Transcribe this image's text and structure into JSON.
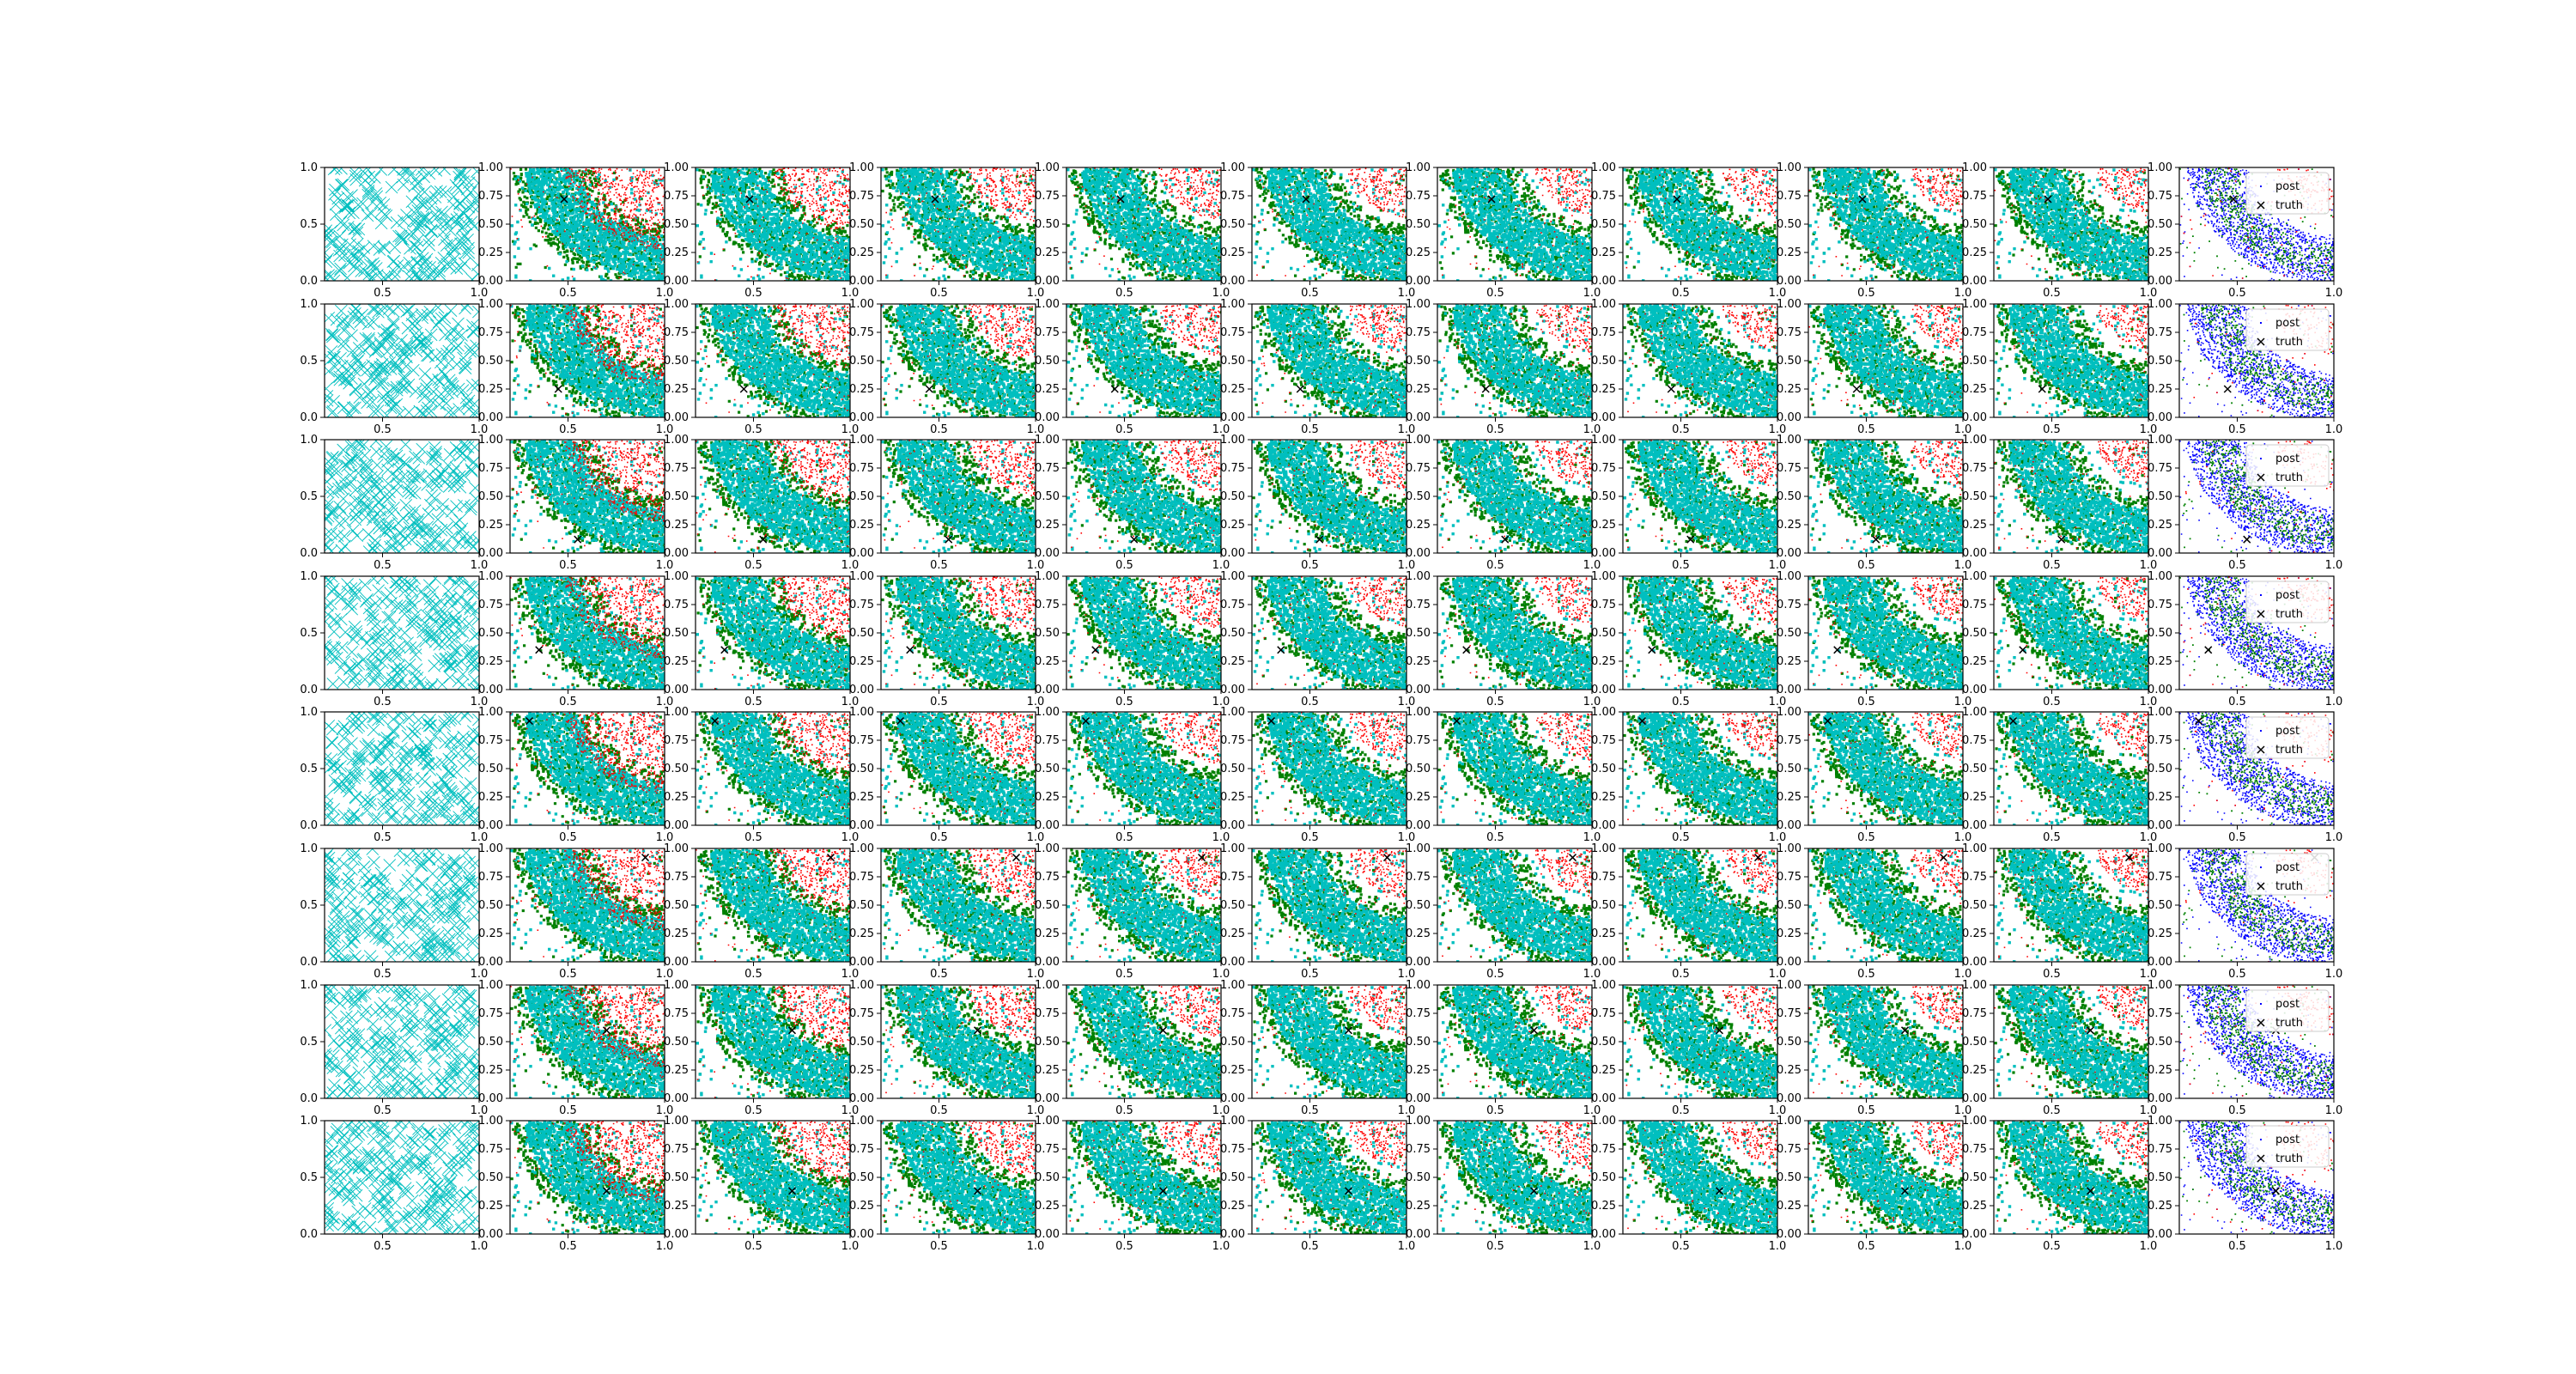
{
  "figure": {
    "colors": {
      "prior": "#00bfbf",
      "green": "#008000",
      "red": "#ff0000",
      "blue": "#0000ff",
      "truth": "#000000",
      "axis": "#000000"
    }
  },
  "chart_data": {
    "type": "scatter",
    "rows": 8,
    "cols": 11,
    "xlim": [
      0.2,
      1.0
    ],
    "ylim": [
      0.0,
      1.0
    ],
    "first_col_yticks": [
      "0.0",
      "0.5",
      "1.0"
    ],
    "other_col_yticks": [
      "0.00",
      "0.25",
      "0.50",
      "0.75",
      "1.00"
    ],
    "xticks": [
      "0.5",
      "1.0"
    ],
    "truth": [
      {
        "x": 0.48,
        "y": 0.72
      },
      {
        "x": 0.45,
        "y": 0.25
      },
      {
        "x": 0.55,
        "y": 0.12
      },
      {
        "x": 0.35,
        "y": 0.35
      },
      {
        "x": 0.3,
        "y": 0.92
      },
      {
        "x": 0.9,
        "y": 0.92
      },
      {
        "x": 0.7,
        "y": 0.6
      },
      {
        "x": 0.7,
        "y": 0.38
      }
    ],
    "legend": [
      {
        "label": "post",
        "marker": "point"
      },
      {
        "label": "truth",
        "marker": "x"
      }
    ]
  }
}
